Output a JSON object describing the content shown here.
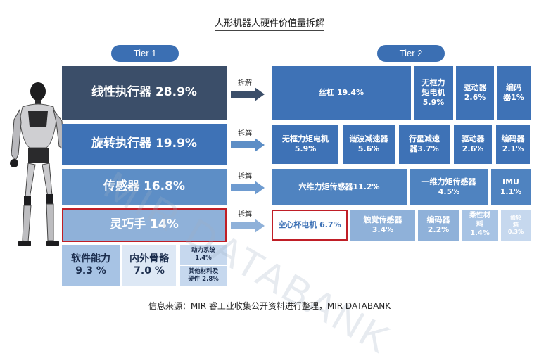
{
  "title": "人形机器人硬件价值量拆解",
  "tier1_label": "Tier 1",
  "tier2_label": "Tier 2",
  "decompose_label": "拆解",
  "tier1": [
    {
      "text": "线性执行器 28.9%"
    },
    {
      "text": "旋转执行器 19.9%"
    },
    {
      "text": "传感器 16.8%"
    },
    {
      "text": "灵巧手 14%"
    }
  ],
  "bottom": {
    "software": {
      "name": "软件能力",
      "value": "9.3 %"
    },
    "skeleton": {
      "name": "内外骨骼",
      "value": "7.0 %"
    },
    "power": {
      "name": "动力系统",
      "value": "1.4%"
    },
    "other": {
      "name": "其他材料及",
      "name2": "硬件 2.8%"
    }
  },
  "tier2": {
    "row1": [
      {
        "name": "丝杠 19.4%"
      },
      {
        "name": "无框力",
        "name2": "矩电机",
        "value": "5.9%"
      },
      {
        "name": "驱动器",
        "value": "2.6%"
      },
      {
        "name": "编码",
        "name2": "器1%"
      }
    ],
    "row2": [
      {
        "name": "无框力矩电机",
        "value": "5.9%"
      },
      {
        "name": "谐波减速器",
        "value": "5.6%"
      },
      {
        "name": "行星减速",
        "name2": "器3.7%"
      },
      {
        "name": "驱动器",
        "value": "2.6%"
      },
      {
        "name": "编码器",
        "value": "2.1%"
      }
    ],
    "row3": [
      {
        "name": "六维力矩传感器11.2%"
      },
      {
        "name": "一维力矩传感器",
        "value": "4.5%"
      },
      {
        "name": "IMU",
        "value": "1.1%"
      }
    ],
    "row4": [
      {
        "name": "空心杯电机 6.7%"
      },
      {
        "name": "触觉传感器",
        "value": "3.4%"
      },
      {
        "name": "编码器",
        "value": "2.2%"
      },
      {
        "name": "柔性材",
        "name2": "料",
        "value": "1.4%"
      },
      {
        "name": "齿轮",
        "name2": "箱",
        "value": "0.3%"
      }
    ]
  },
  "watermark": "MIR DATABANK",
  "source": "信息来源：MIR 睿工业收集公开资料进行整理，MIR DATABANK",
  "colors": {
    "dark": "#3b4e69",
    "blue": "#3e72b6",
    "highlight": "#c01e26"
  }
}
